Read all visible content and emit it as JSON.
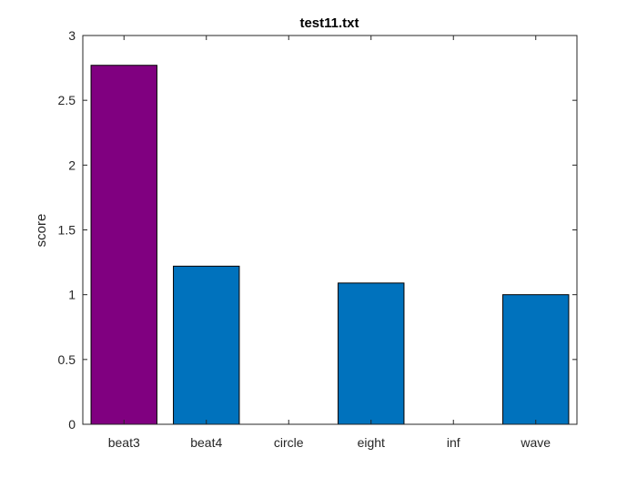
{
  "chart_data": {
    "type": "bar",
    "title": "test11.txt",
    "xlabel": "",
    "ylabel": "score",
    "categories": [
      "beat3",
      "beat4",
      "circle",
      "eight",
      "inf",
      "wave"
    ],
    "values": [
      2.77,
      1.22,
      0,
      1.09,
      0,
      1.0
    ],
    "bar_colors": [
      "#800080",
      "#0072BD",
      "#0072BD",
      "#0072BD",
      "#0072BD",
      "#0072BD"
    ],
    "ylim": [
      0,
      3
    ],
    "yticks": [
      0,
      0.5,
      1,
      1.5,
      2,
      2.5,
      3
    ],
    "ytick_labels": [
      "0",
      "0.5",
      "1",
      "1.5",
      "2",
      "2.5",
      "3"
    ],
    "grid": false,
    "legend": "none"
  }
}
